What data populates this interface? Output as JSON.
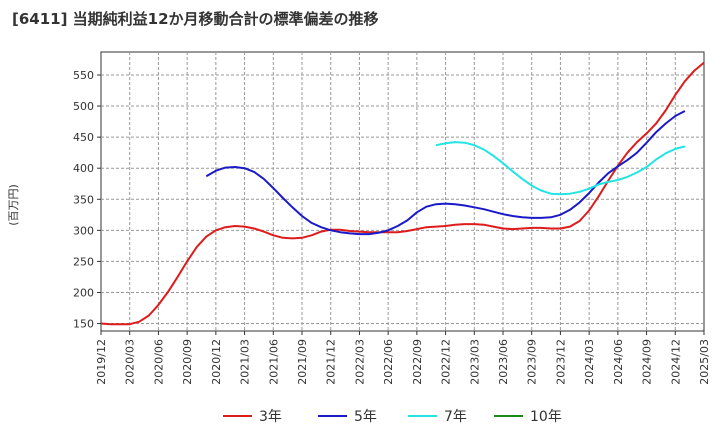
{
  "chart_data": {
    "type": "line",
    "title": "[6411]  当期純利益12か月移動合計の標準偏差の推移",
    "ylabel": "(百万円)",
    "xlabel": "",
    "ylim": [
      138,
      587
    ],
    "yticks": [
      150,
      200,
      250,
      300,
      350,
      400,
      450,
      500,
      550
    ],
    "grid": true,
    "legend_position": "bottom",
    "x_start": "2019/12",
    "x_end": "2025/03",
    "x_tick_labels": [
      "2019/12",
      "2020/03",
      "2020/06",
      "2020/09",
      "2020/12",
      "2021/03",
      "2021/06",
      "2021/09",
      "2021/12",
      "2022/03",
      "2022/06",
      "2022/09",
      "2022/12",
      "2023/03",
      "2023/06",
      "2023/09",
      "2023/12",
      "2024/03",
      "2024/06",
      "2024/09",
      "2024/12",
      "2025/03"
    ],
    "series": [
      {
        "name": "3年",
        "color": "#dd1c1c",
        "start": "2019/12",
        "values": [
          150,
          149,
          149,
          149,
          153,
          163,
          180,
          201,
          225,
          250,
          273,
          290,
          300,
          305,
          307,
          306,
          303,
          298,
          292,
          288,
          287,
          288,
          292,
          298,
          301,
          301,
          299,
          298,
          297,
          297,
          297,
          297,
          299,
          302,
          305,
          306,
          307,
          309,
          310,
          310,
          309,
          306,
          303,
          302,
          303,
          304,
          304,
          303,
          303,
          306,
          315,
          332,
          355,
          380,
          404,
          425,
          442,
          456,
          472,
          493,
          518,
          540,
          557,
          570
        ]
      },
      {
        "name": "5年",
        "color": "#1a1ac8",
        "start": "2020/11",
        "values": [
          387,
          396,
          401,
          402,
          400,
          394,
          383,
          368,
          352,
          337,
          323,
          312,
          305,
          300,
          297,
          295,
          294,
          294,
          296,
          300,
          307,
          316,
          329,
          338,
          342,
          343,
          342,
          340,
          337,
          334,
          330,
          326,
          323,
          321,
          320,
          320,
          321,
          325,
          333,
          345,
          360,
          377,
          392,
          403,
          413,
          425,
          441,
          458,
          472,
          484,
          492
        ]
      },
      {
        "name": "7年",
        "color": "#22e4e4",
        "start": "2022/11",
        "values": [
          437,
          440,
          442,
          441,
          437,
          430,
          420,
          408,
          395,
          383,
          372,
          364,
          359,
          358,
          359,
          362,
          367,
          374,
          378,
          381,
          386,
          393,
          402,
          414,
          424,
          431,
          435
        ]
      },
      {
        "name": "10年",
        "color": "#1a8a1a",
        "start": "2024/12",
        "values": []
      }
    ]
  }
}
